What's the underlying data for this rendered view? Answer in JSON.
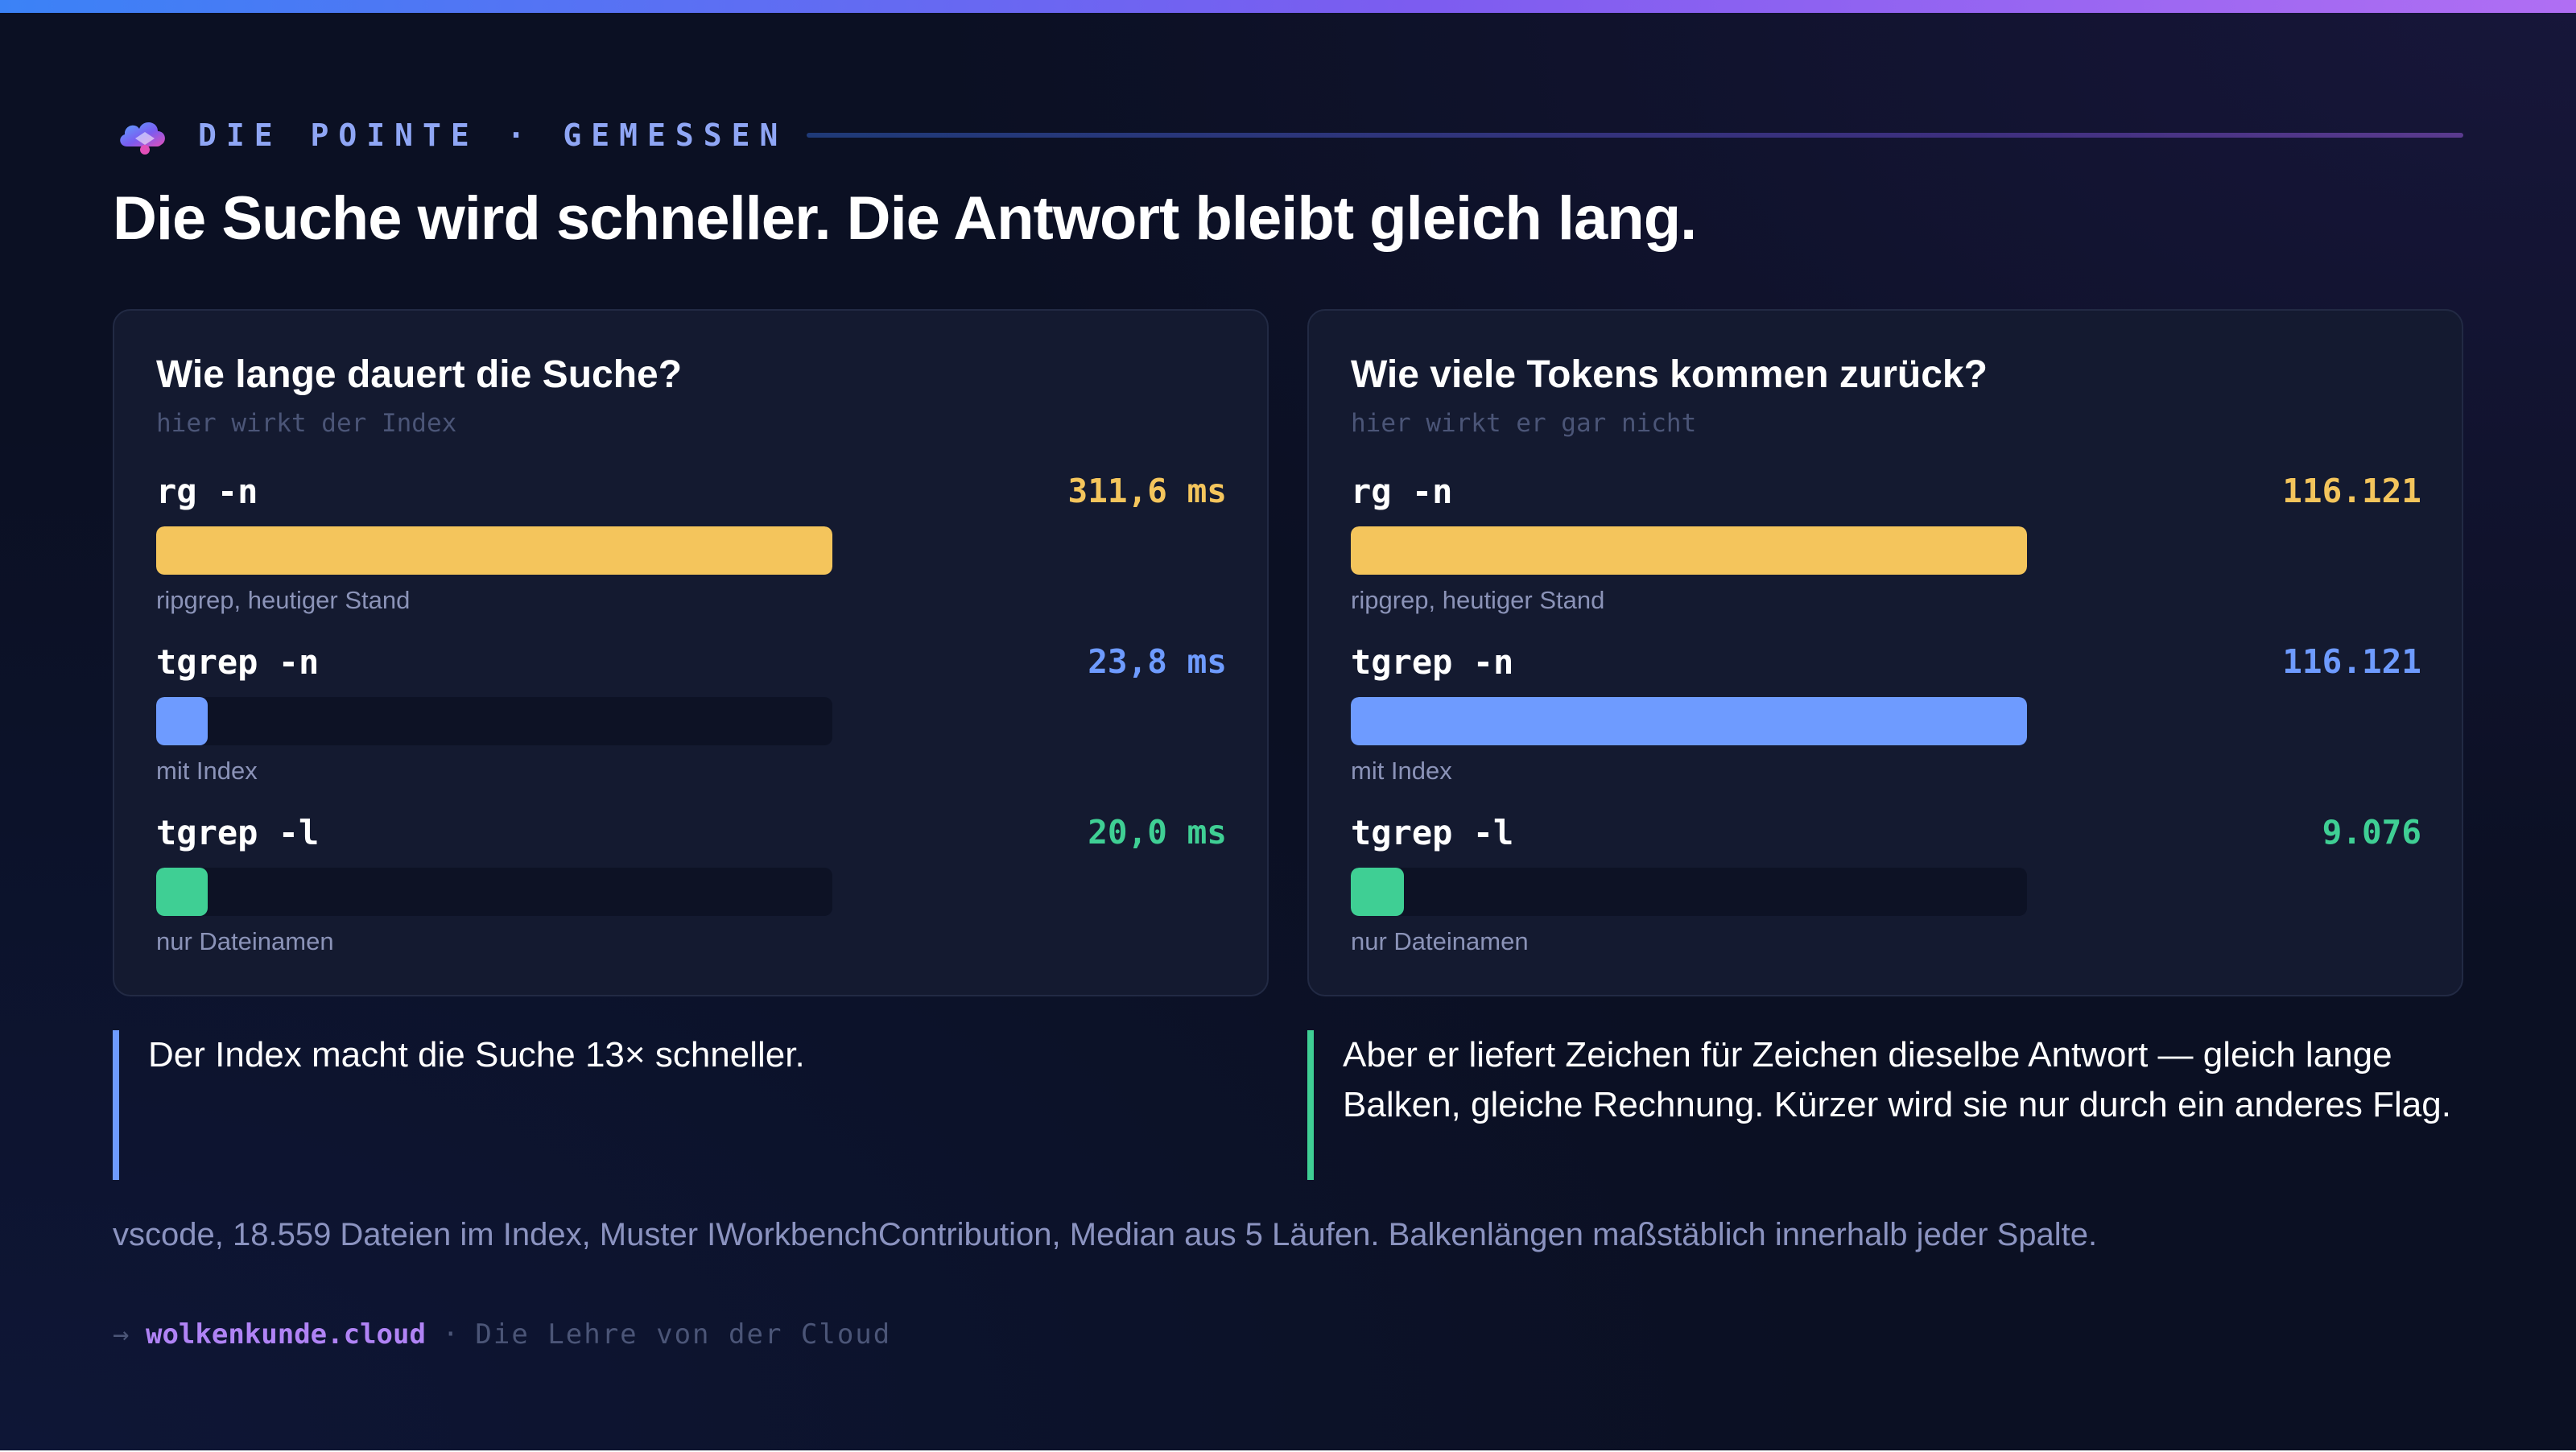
{
  "kicker": {
    "text": "DIE POINTE · GEMESSEN",
    "logo_icon": "cloud-logo-icon"
  },
  "headline": "Die Suche wird schneller. Die Antwort bleibt gleich lang.",
  "colors": {
    "yellow": "#f4c55c",
    "blue": "#6e9bff",
    "green": "#3fcf94"
  },
  "chart_data": [
    {
      "type": "bar",
      "title": "Wie lange dauert die Suche?",
      "subtitle": "hier wirkt der Index",
      "unit": "ms",
      "categories": [
        "rg -n",
        "tgrep -n",
        "tgrep -l"
      ],
      "values": [
        311.6,
        23.8,
        20.0
      ],
      "value_labels": [
        "311,6 ms",
        "23,8 ms",
        "20,0 ms"
      ],
      "notes": [
        "ripgrep, heutiger Stand",
        "mit Index",
        "nur Dateinamen"
      ],
      "colors": [
        "#f4c55c",
        "#6e9bff",
        "#3fcf94"
      ],
      "ylim": [
        0,
        311.6
      ]
    },
    {
      "type": "bar",
      "title": "Wie viele Tokens kommen zurück?",
      "subtitle": "hier wirkt er gar nicht",
      "categories": [
        "rg -n",
        "tgrep -n",
        "tgrep -l"
      ],
      "values": [
        116121,
        116121,
        9076
      ],
      "value_labels": [
        "116.121",
        "116.121",
        "9.076"
      ],
      "notes": [
        "ripgrep, heutiger Stand",
        "mit Index",
        "nur Dateinamen"
      ],
      "colors": [
        "#f4c55c",
        "#6e9bff",
        "#3fcf94"
      ],
      "ylim": [
        0,
        116121
      ]
    }
  ],
  "quotes": {
    "left": "Der Index macht die Suche 13× schneller.",
    "right": "Aber er liefert Zeichen für Zeichen dieselbe Antwort — gleich lange Balken, gleiche Rechnung. Kürzer wird sie nur durch ein anderes Flag."
  },
  "caption": "vscode, 18.559 Dateien im Index, Muster IWorkbenchContribution, Median aus 5 Läufen. Balkenlängen maßstäblich innerhalb jeder Spalte.",
  "footer": {
    "arrow": "→",
    "url": "wolkenkunde.cloud",
    "separator": "·",
    "tagline": "Die Lehre von der Cloud"
  }
}
